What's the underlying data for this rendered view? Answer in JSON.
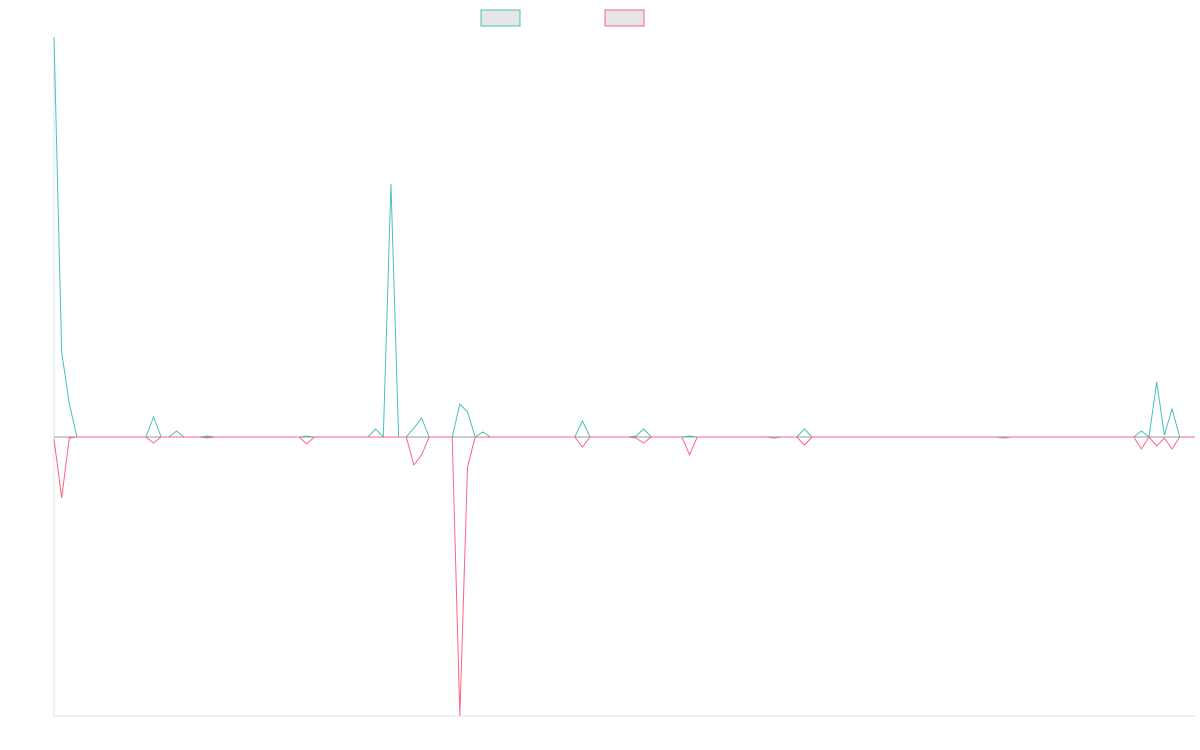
{
  "chart_data": {
    "type": "line",
    "ylim": [
      -279,
      400
    ],
    "series": [
      {
        "color": "#4bc0c0",
        "values": [
          400,
          85,
          33,
          0,
          0,
          0,
          0,
          0,
          0,
          0,
          0,
          0,
          0,
          20,
          0,
          0,
          6,
          0,
          0,
          0,
          1,
          0,
          0,
          0,
          0,
          0,
          0,
          0,
          0,
          0,
          0,
          0,
          0,
          1,
          0,
          0,
          0,
          0,
          0,
          0,
          0,
          0,
          8,
          0,
          253,
          0,
          0,
          9,
          19,
          0,
          0,
          0,
          0,
          33,
          25,
          0,
          5,
          0,
          0,
          0,
          0,
          0,
          0,
          0,
          0,
          0,
          0,
          0,
          0,
          16,
          0,
          0,
          0,
          0,
          0,
          0,
          1,
          8,
          0,
          0,
          0,
          0,
          0,
          1,
          0,
          0,
          0,
          0,
          0,
          0,
          0,
          0,
          0,
          0,
          0,
          0,
          0,
          0,
          8,
          0,
          0,
          0,
          0,
          0,
          0,
          0,
          0,
          0,
          0,
          0,
          0,
          0,
          0,
          0,
          0,
          0,
          0,
          0,
          0,
          0,
          0,
          0,
          0,
          0,
          0,
          0,
          0,
          0,
          0,
          0,
          0,
          0,
          0,
          0,
          0,
          0,
          0,
          0,
          0,
          0,
          0,
          0,
          6,
          0,
          55,
          2,
          28,
          0,
          0,
          0
        ]
      },
      {
        "color": "#ff6384",
        "values": [
          -2,
          -61,
          -1,
          0,
          0,
          0,
          0,
          0,
          0,
          0,
          0,
          0,
          0,
          -6,
          0,
          0,
          0,
          0,
          0,
          0,
          -1,
          0,
          0,
          0,
          0,
          0,
          0,
          0,
          0,
          0,
          0,
          0,
          0,
          -7,
          0,
          0,
          0,
          0,
          0,
          0,
          0,
          0,
          0,
          0,
          0,
          0,
          0,
          -28,
          -18,
          0,
          0,
          0,
          0,
          -279,
          -30,
          0,
          0,
          0,
          0,
          0,
          0,
          0,
          0,
          0,
          0,
          0,
          0,
          0,
          0,
          -10,
          0,
          0,
          0,
          0,
          0,
          0,
          -1,
          -6,
          0,
          0,
          0,
          0,
          0,
          -18,
          0,
          0,
          0,
          0,
          0,
          0,
          0,
          0,
          0,
          0,
          -1,
          0,
          0,
          0,
          -8,
          0,
          0,
          0,
          0,
          0,
          0,
          0,
          0,
          0,
          0,
          0,
          0,
          0,
          0,
          0,
          0,
          0,
          0,
          0,
          0,
          0,
          0,
          0,
          0,
          0,
          -1,
          0,
          0,
          0,
          0,
          0,
          0,
          0,
          0,
          0,
          0,
          0,
          0,
          0,
          0,
          0,
          0,
          0,
          -12,
          0,
          -9,
          -1,
          -12,
          0,
          0,
          0
        ]
      }
    ]
  }
}
